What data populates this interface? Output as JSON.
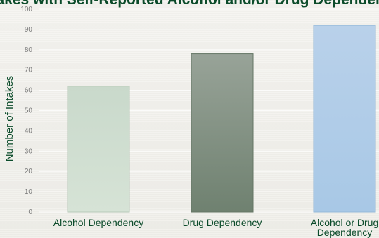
{
  "chart_data": {
    "type": "bar",
    "title": "Intakes with Self-Reported Alcohol and/or Drug Dependency",
    "xlabel": "",
    "ylabel": "Number of Intakes",
    "ylim": [
      0,
      100
    ],
    "yticks": [
      0,
      10,
      20,
      30,
      40,
      50,
      60,
      70,
      80,
      90,
      100
    ],
    "categories": [
      [
        "Alcohol Dependency"
      ],
      [
        "Drug Dependency"
      ],
      [
        "Alcohol or Drug",
        "Dependency"
      ]
    ],
    "values": [
      62,
      78,
      92
    ],
    "grid": true,
    "legend": "none",
    "colors": {
      "title": "#0b4b2a",
      "axis_text": "#0b4b2a",
      "tick_text": "#7a7a7a",
      "bars": [
        {
          "top": "#c9d9cb",
          "bottom": "#d6e3d6",
          "stroke": "#b7c8b8"
        },
        {
          "top": "#98a398",
          "bottom": "#6f8170",
          "stroke": "#647564"
        },
        {
          "top": "#b9d1ea",
          "bottom": "#a8c8e6",
          "stroke": "#95b8d8"
        }
      ]
    }
  }
}
